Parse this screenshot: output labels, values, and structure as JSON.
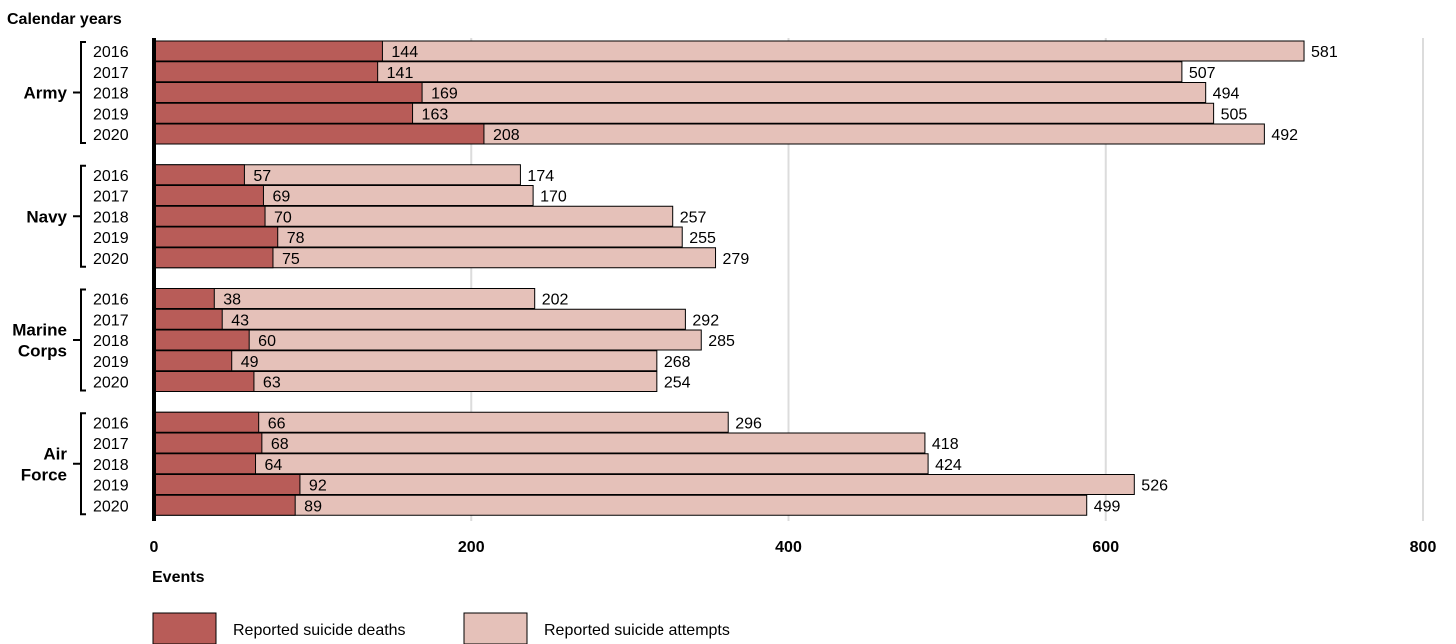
{
  "chart_data": {
    "type": "bar",
    "orientation": "horizontal",
    "stacked": true,
    "title": "Calendar years",
    "xlabel": "Events",
    "xlim": [
      0,
      800
    ],
    "xticks": [
      0,
      200,
      400,
      600,
      800
    ],
    "grid": true,
    "legend_position": "bottom",
    "series": [
      {
        "name": "Reported suicide deaths",
        "color": "#b85c58"
      },
      {
        "name": "Reported suicide attempts",
        "color": "#e5c1b9"
      }
    ],
    "groups": [
      {
        "label": [
          "Army"
        ],
        "rows": [
          {
            "year": "2016",
            "deaths": 144,
            "attempts": 581
          },
          {
            "year": "2017",
            "deaths": 141,
            "attempts": 507
          },
          {
            "year": "2018",
            "deaths": 169,
            "attempts": 494
          },
          {
            "year": "2019",
            "deaths": 163,
            "attempts": 505
          },
          {
            "year": "2020",
            "deaths": 208,
            "attempts": 492
          }
        ]
      },
      {
        "label": [
          "Navy"
        ],
        "rows": [
          {
            "year": "2016",
            "deaths": 57,
            "attempts": 174
          },
          {
            "year": "2017",
            "deaths": 69,
            "attempts": 170
          },
          {
            "year": "2018",
            "deaths": 70,
            "attempts": 257
          },
          {
            "year": "2019",
            "deaths": 78,
            "attempts": 255
          },
          {
            "year": "2020",
            "deaths": 75,
            "attempts": 279
          }
        ]
      },
      {
        "label": [
          "Marine",
          "Corps"
        ],
        "rows": [
          {
            "year": "2016",
            "deaths": 38,
            "attempts": 202
          },
          {
            "year": "2017",
            "deaths": 43,
            "attempts": 292
          },
          {
            "year": "2018",
            "deaths": 60,
            "attempts": 285
          },
          {
            "year": "2019",
            "deaths": 49,
            "attempts": 268
          },
          {
            "year": "2020",
            "deaths": 63,
            "attempts": 254
          }
        ]
      },
      {
        "label": [
          "Air",
          "Force"
        ],
        "rows": [
          {
            "year": "2016",
            "deaths": 66,
            "attempts": 296
          },
          {
            "year": "2017",
            "deaths": 68,
            "attempts": 418
          },
          {
            "year": "2018",
            "deaths": 64,
            "attempts": 424
          },
          {
            "year": "2019",
            "deaths": 92,
            "attempts": 526
          },
          {
            "year": "2020",
            "deaths": 89,
            "attempts": 499
          }
        ]
      }
    ]
  }
}
